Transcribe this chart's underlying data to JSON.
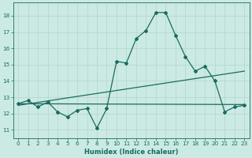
{
  "xlabel": "Humidex (Indice chaleur)",
  "bg_color": "#cceae4",
  "grid_color": "#b8d8d2",
  "line_color": "#1a6b5e",
  "xlim": [
    -0.5,
    23.5
  ],
  "ylim": [
    10.5,
    18.8
  ],
  "yticks": [
    11,
    12,
    13,
    14,
    15,
    16,
    17,
    18
  ],
  "xticks": [
    0,
    1,
    2,
    3,
    4,
    5,
    6,
    7,
    8,
    9,
    10,
    11,
    12,
    13,
    14,
    15,
    16,
    17,
    18,
    19,
    20,
    21,
    22,
    23
  ],
  "series1_x": [
    0,
    1,
    2,
    3,
    4,
    5,
    6,
    7,
    8,
    9,
    10,
    11,
    12,
    13,
    14,
    15,
    16,
    17,
    18,
    19,
    20,
    21,
    22,
    23
  ],
  "series1_y": [
    12.6,
    12.8,
    12.4,
    12.7,
    12.1,
    11.8,
    12.2,
    12.3,
    11.1,
    12.3,
    15.2,
    15.1,
    16.6,
    17.1,
    18.2,
    18.2,
    16.8,
    15.5,
    14.6,
    14.9,
    14.0,
    12.1,
    12.4,
    12.5
  ],
  "series2_x": [
    0,
    23
  ],
  "series2_y": [
    12.5,
    14.6
  ],
  "series3_x": [
    0,
    23
  ],
  "series3_y": [
    12.6,
    12.55
  ],
  "tick_fontsize": 5.2,
  "xlabel_fontsize": 6.0
}
